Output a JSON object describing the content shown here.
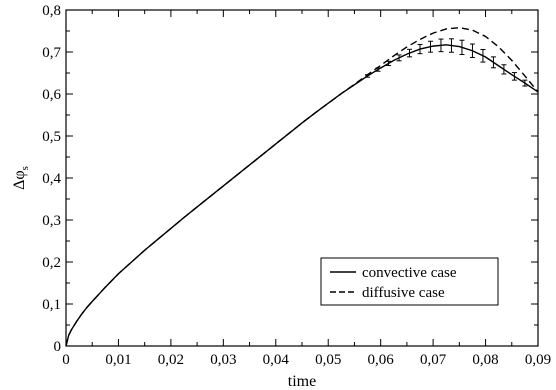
{
  "chart_data": {
    "type": "line",
    "title": "",
    "xlabel": "time",
    "ylabel": "Δφ",
    "ylabel_subscript": "s",
    "xlim": [
      0,
      0.09
    ],
    "ylim": [
      0,
      0.8
    ],
    "x_ticks": [
      0,
      0.01,
      0.02,
      0.03,
      0.04,
      0.05,
      0.06,
      0.07,
      0.08,
      0.09
    ],
    "x_tick_labels": [
      "0",
      "0,01",
      "0,02",
      "0,03",
      "0,04",
      "0,05",
      "0,06",
      "0,07",
      "0,08",
      "0,09"
    ],
    "y_ticks": [
      0,
      0.1,
      0.2,
      0.3,
      0.4,
      0.5,
      0.6,
      0.7,
      0.8
    ],
    "y_tick_labels": [
      "0",
      "0,1",
      "0,2",
      "0,3",
      "0,4",
      "0,5",
      "0,6",
      "0,7",
      "0,8"
    ],
    "grid": false,
    "legend_position": "bottom-right",
    "series": [
      {
        "name": "convective case",
        "style": "solid",
        "color": "#000000",
        "x": [
          0,
          0.0005,
          0.001,
          0.002,
          0.003,
          0.004,
          0.005,
          0.0075,
          0.01,
          0.0125,
          0.015,
          0.0175,
          0.02,
          0.0225,
          0.025,
          0.0275,
          0.03,
          0.0325,
          0.035,
          0.0375,
          0.04,
          0.0425,
          0.045,
          0.0475,
          0.05,
          0.0525,
          0.055,
          0.0575,
          0.06,
          0.0625,
          0.065,
          0.0675,
          0.07,
          0.0725,
          0.075,
          0.0775,
          0.08,
          0.0825,
          0.085,
          0.0875,
          0.09
        ],
        "y": [
          0.0,
          0.025,
          0.038,
          0.058,
          0.076,
          0.092,
          0.106,
          0.14,
          0.172,
          0.2,
          0.228,
          0.254,
          0.28,
          0.306,
          0.331,
          0.356,
          0.381,
          0.406,
          0.431,
          0.456,
          0.481,
          0.506,
          0.531,
          0.555,
          0.578,
          0.601,
          0.622,
          0.643,
          0.662,
          0.68,
          0.695,
          0.707,
          0.714,
          0.717,
          0.713,
          0.703,
          0.688,
          0.667,
          0.646,
          0.626,
          0.605
        ]
      },
      {
        "name": "diffusive case",
        "style": "dashed",
        "color": "#000000",
        "x": [
          0,
          0.0005,
          0.001,
          0.002,
          0.003,
          0.004,
          0.005,
          0.0075,
          0.01,
          0.0125,
          0.015,
          0.0175,
          0.02,
          0.0225,
          0.025,
          0.0275,
          0.03,
          0.0325,
          0.035,
          0.0375,
          0.04,
          0.0425,
          0.045,
          0.0475,
          0.05,
          0.0525,
          0.055,
          0.0575,
          0.06,
          0.0625,
          0.065,
          0.0675,
          0.07,
          0.0725,
          0.075,
          0.0775,
          0.08,
          0.0825,
          0.085,
          0.0875,
          0.09
        ],
        "y": [
          0.0,
          0.025,
          0.038,
          0.058,
          0.076,
          0.092,
          0.106,
          0.14,
          0.172,
          0.2,
          0.228,
          0.254,
          0.28,
          0.306,
          0.331,
          0.356,
          0.381,
          0.406,
          0.431,
          0.456,
          0.481,
          0.506,
          0.531,
          0.555,
          0.578,
          0.601,
          0.623,
          0.646,
          0.668,
          0.691,
          0.712,
          0.73,
          0.745,
          0.755,
          0.758,
          0.752,
          0.737,
          0.712,
          0.68,
          0.643,
          0.605
        ]
      }
    ],
    "error_bars": {
      "series": "convective case",
      "x": [
        0.0575,
        0.0595,
        0.0615,
        0.0635,
        0.0655,
        0.0675,
        0.0695,
        0.0715,
        0.0735,
        0.0755,
        0.0775,
        0.0795,
        0.0815,
        0.0835,
        0.0855,
        0.0875
      ],
      "half_width": [
        0.003,
        0.004,
        0.005,
        0.007,
        0.009,
        0.011,
        0.013,
        0.015,
        0.016,
        0.017,
        0.016,
        0.015,
        0.013,
        0.011,
        0.009,
        0.007
      ]
    }
  }
}
